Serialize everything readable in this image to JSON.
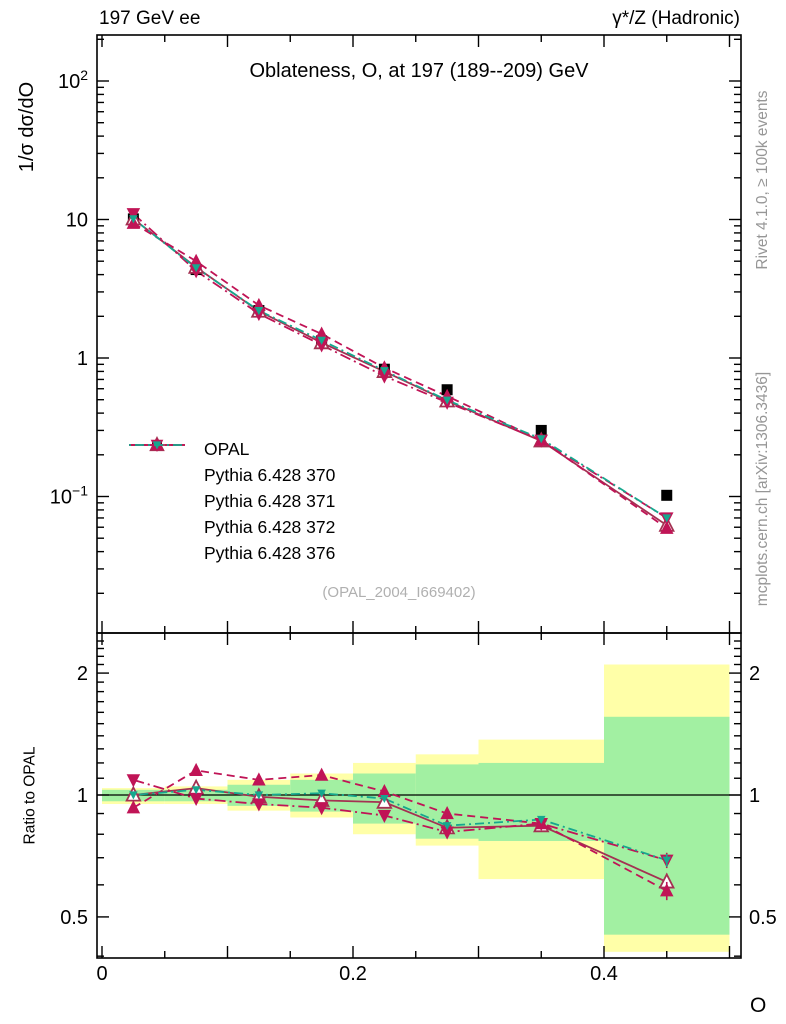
{
  "header": {
    "left": "197 GeV ee",
    "right": "γ*/Z (Hadronic)"
  },
  "watermark": "(OPAL_2004_I669402)",
  "side_notes": {
    "top": "Rivet 4.1.0, ≥ 100k events",
    "bottom": "mcplots.cern.ch [arXiv:1306.3436]"
  },
  "chart_data": {
    "type": "line",
    "title": "Oblateness, O, at 197 (189--209) GeV",
    "xlabel": "O",
    "ylabel_main": "1/σ dσ/dO",
    "ylabel_ratio": "Ratio to OPAL",
    "main_y_scale": "log",
    "ratio_y_scale": "log",
    "xlim": [
      -0.004,
      0.509
    ],
    "main_ylim": [
      0.0103,
      215
    ],
    "ratio_ylim": [
      0.396,
      2.51
    ],
    "x_bin_edges": [
      0,
      0.05,
      0.1,
      0.15,
      0.2,
      0.25,
      0.3,
      0.4,
      0.5
    ],
    "x_centers": [
      0.025,
      0.075,
      0.125,
      0.175,
      0.225,
      0.275,
      0.35,
      0.45
    ],
    "x_ticks": [
      {
        "v": 0,
        "label": "0"
      },
      {
        "v": 0.2,
        "label": "0.2"
      },
      {
        "v": 0.4,
        "label": "0.4"
      }
    ],
    "main_y_ticks": [
      {
        "v": 100,
        "base": "10",
        "sup": "2"
      },
      {
        "v": 10,
        "base": "10",
        "sup": ""
      },
      {
        "v": 1,
        "base": "1",
        "sup": ""
      },
      {
        "v": 0.1,
        "base": "10",
        "sup": "−1"
      }
    ],
    "ratio_y_ticks": [
      {
        "v": 2,
        "label": "2"
      },
      {
        "v": 1,
        "label": "1"
      },
      {
        "v": 0.5,
        "label": "0.5"
      }
    ],
    "series": [
      {
        "name": "OPAL",
        "color": "#000000",
        "line": "none",
        "marker": "square-filled",
        "values": [
          10.1,
          4.35,
          2.2,
          1.33,
          0.83,
          0.59,
          0.3,
          0.102
        ],
        "err_frac": [
          0.03,
          0.02,
          0.02,
          0.02,
          0.025,
          0.03,
          0.035,
          0.06
        ]
      },
      {
        "name": "Pythia 6.428 370",
        "color": "#a43152",
        "line": "solid",
        "marker": "triangle-up-open",
        "values": [
          10.1,
          4.52,
          2.18,
          1.29,
          0.8,
          0.49,
          0.252,
          0.062
        ],
        "err_frac": [
          0.012,
          0.01,
          0.008,
          0.008,
          0.01,
          0.012,
          0.015,
          0.04
        ],
        "ratio": [
          1.0,
          1.04,
          0.99,
          0.97,
          0.96,
          0.83,
          0.84,
          0.61
        ],
        "ratio_err": [
          0.012,
          0.012,
          0.01,
          0.01,
          0.012,
          0.015,
          0.02,
          0.03
        ]
      },
      {
        "name": "Pythia 6.428 371",
        "color": "#c01456",
        "line": "dash",
        "marker": "triangle-up-filled",
        "values": [
          9.4,
          5.0,
          2.4,
          1.49,
          0.85,
          0.53,
          0.255,
          0.059
        ],
        "err_frac": [
          0.012,
          0.01,
          0.008,
          0.008,
          0.01,
          0.012,
          0.015,
          0.04
        ],
        "ratio": [
          0.93,
          1.15,
          1.09,
          1.12,
          1.02,
          0.9,
          0.85,
          0.58
        ],
        "ratio_err": [
          0.012,
          0.012,
          0.01,
          0.01,
          0.012,
          0.015,
          0.02,
          0.03
        ]
      },
      {
        "name": "Pythia 6.428 372",
        "color": "#c01456",
        "line": "dashdot",
        "marker": "triangle-down-filled",
        "values": [
          11.0,
          4.26,
          2.09,
          1.24,
          0.74,
          0.478,
          0.255,
          0.07
        ],
        "err_frac": [
          0.012,
          0.01,
          0.008,
          0.008,
          0.01,
          0.012,
          0.015,
          0.04
        ],
        "ratio": [
          1.09,
          0.98,
          0.95,
          0.93,
          0.89,
          0.81,
          0.85,
          0.69
        ],
        "ratio_err": [
          0.012,
          0.012,
          0.01,
          0.01,
          0.012,
          0.015,
          0.02,
          0.03
        ]
      },
      {
        "name": "Pythia 6.428 376",
        "color": "#16a88e",
        "line": "dashdotdot",
        "marker": "triangle-down-small",
        "values": [
          10.1,
          4.48,
          2.2,
          1.34,
          0.81,
          0.496,
          0.261,
          0.07
        ],
        "err_frac": [
          0.012,
          0.01,
          0.008,
          0.008,
          0.01,
          0.012,
          0.015,
          0.04
        ],
        "ratio": [
          1.0,
          1.03,
          1.0,
          1.01,
          0.98,
          0.84,
          0.87,
          0.69
        ],
        "ratio_err": [
          0.01,
          0.008,
          0.007,
          0.007,
          0.009,
          0.012,
          0.015,
          0.025
        ]
      }
    ],
    "bands": {
      "yellow": {
        "color": "#ffffa8",
        "lo": [
          0.95,
          0.95,
          0.915,
          0.88,
          0.8,
          0.75,
          0.62,
          0.41
        ],
        "hi": [
          1.04,
          1.05,
          1.09,
          1.13,
          1.2,
          1.26,
          1.37,
          2.1
        ]
      },
      "green": {
        "color": "#a2f0a2",
        "lo": [
          0.965,
          0.965,
          0.94,
          0.91,
          0.85,
          0.78,
          0.77,
          0.452
        ],
        "hi": [
          1.03,
          1.03,
          1.06,
          1.09,
          1.13,
          1.19,
          1.2,
          1.56
        ]
      }
    },
    "reference_line": 1.0
  }
}
